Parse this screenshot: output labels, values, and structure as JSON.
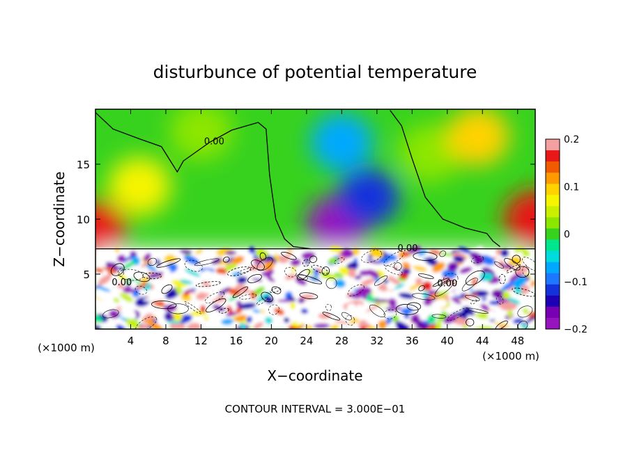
{
  "chart_data": {
    "type": "heatmap",
    "title": "disturbunce of potential temperature",
    "xlabel": "X−coordinate",
    "ylabel": "Z−coordinate",
    "x_unit_left": "(×1000 m)",
    "x_unit_right": "(×1000 m)",
    "footer": "CONTOUR INTERVAL = 3.000E−01",
    "xlim": [
      0,
      50
    ],
    "ylim": [
      0,
      20
    ],
    "x_ticks": [
      4,
      8,
      12,
      16,
      20,
      24,
      28,
      32,
      36,
      40,
      44,
      48
    ],
    "y_ticks": [
      5,
      10,
      15
    ],
    "contour_labels": [
      {
        "text": "0.00",
        "x": 13.5,
        "y": 16.8
      },
      {
        "text": "0.00",
        "x": 35.5,
        "y": 7.1
      },
      {
        "text": "0.00",
        "x": 3.0,
        "y": 4.0
      },
      {
        "text": "0.00",
        "x": 40.0,
        "y": 3.9
      }
    ],
    "colorbar": {
      "min": -0.2,
      "max": 0.2,
      "tick_values": [
        0.2,
        0.1,
        0,
        -0.1,
        -0.2
      ],
      "tick_labels": [
        "0.2",
        "0.1",
        "0",
        "−0.1",
        "−0.2"
      ],
      "colors": [
        "#f5a0a0",
        "#e81818",
        "#f05a00",
        "#ff9a00",
        "#ffd200",
        "#f6f400",
        "#c8f000",
        "#8ce600",
        "#37d21e",
        "#00e68c",
        "#00dcdc",
        "#00a8ff",
        "#1e78ff",
        "#1432dc",
        "#1e00b4",
        "#7800b4",
        "#9614be"
      ]
    },
    "fields": {
      "upper_layer": {
        "z_range": [
          7.3,
          20
        ],
        "features": [
          {
            "x": 0,
            "z": 9,
            "value": 0.17
          },
          {
            "x": 50,
            "z": 10,
            "value": 0.16
          },
          {
            "x": 5,
            "z": 13,
            "value": 0.08
          },
          {
            "x": 27.5,
            "z": 9.5,
            "value": -0.18
          },
          {
            "x": 31,
            "z": 12,
            "value": -0.12
          },
          {
            "x": 28,
            "z": 17,
            "value": -0.06
          },
          {
            "x": 38,
            "z": 16,
            "value": 0.02
          },
          {
            "x": 43.5,
            "z": 17.5,
            "value": 0.1
          },
          {
            "x": 12,
            "z": 18,
            "value": 0.03
          }
        ]
      },
      "lower_layer": {
        "z_range": [
          0,
          7.3
        ],
        "pattern": "turbulent"
      }
    }
  }
}
